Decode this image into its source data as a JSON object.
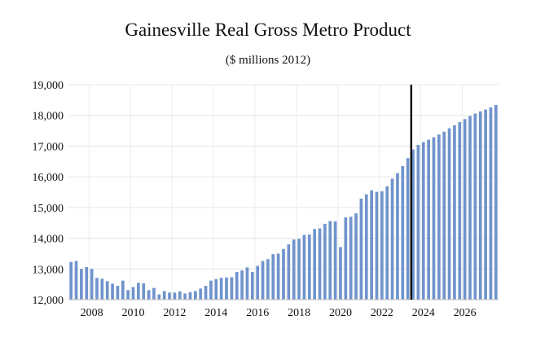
{
  "chart_data": {
    "type": "bar",
    "title": "Gainesville Real Gross Metro Product",
    "subtitle": "($ millions 2012)",
    "xlabel": "",
    "ylabel": "",
    "ylim": [
      12000,
      19000
    ],
    "y_ticks": [
      12000,
      13000,
      14000,
      15000,
      16000,
      17000,
      18000,
      19000
    ],
    "y_tick_labels": [
      "12,000",
      "13,000",
      "14,000",
      "15,000",
      "16,000",
      "17,000",
      "18,000",
      "19,000"
    ],
    "x_tick_labels": [
      "2008",
      "2010",
      "2012",
      "2014",
      "2016",
      "2018",
      "2020",
      "2022",
      "2024",
      "2026"
    ],
    "x_tick_positions_quarter_index": [
      4,
      12,
      20,
      28,
      36,
      44,
      52,
      60,
      68,
      76
    ],
    "start": "2007Q1",
    "frequency": "quarterly",
    "forecast_start_quarter_index": 66,
    "grid": true,
    "bar_color": "#7094cc",
    "marker_color": "#000000",
    "values": [
      13230,
      13260,
      13000,
      13060,
      13000,
      12710,
      12680,
      12600,
      12520,
      12450,
      12620,
      12310,
      12410,
      12550,
      12530,
      12310,
      12380,
      12170,
      12280,
      12230,
      12230,
      12270,
      12200,
      12240,
      12280,
      12360,
      12450,
      12620,
      12670,
      12710,
      12720,
      12730,
      12900,
      12950,
      13050,
      12900,
      13100,
      13260,
      13320,
      13480,
      13500,
      13650,
      13800,
      13960,
      13980,
      14110,
      14120,
      14300,
      14320,
      14470,
      14560,
      14550,
      13710,
      14680,
      14700,
      14810,
      15290,
      15430,
      15560,
      15510,
      15530,
      15690,
      15940,
      16120,
      16350,
      16610,
      16890,
      17040,
      17130,
      17210,
      17290,
      17380,
      17470,
      17580,
      17680,
      17780,
      17880,
      17980,
      18060,
      18130,
      18190,
      18260,
      18340
    ]
  }
}
